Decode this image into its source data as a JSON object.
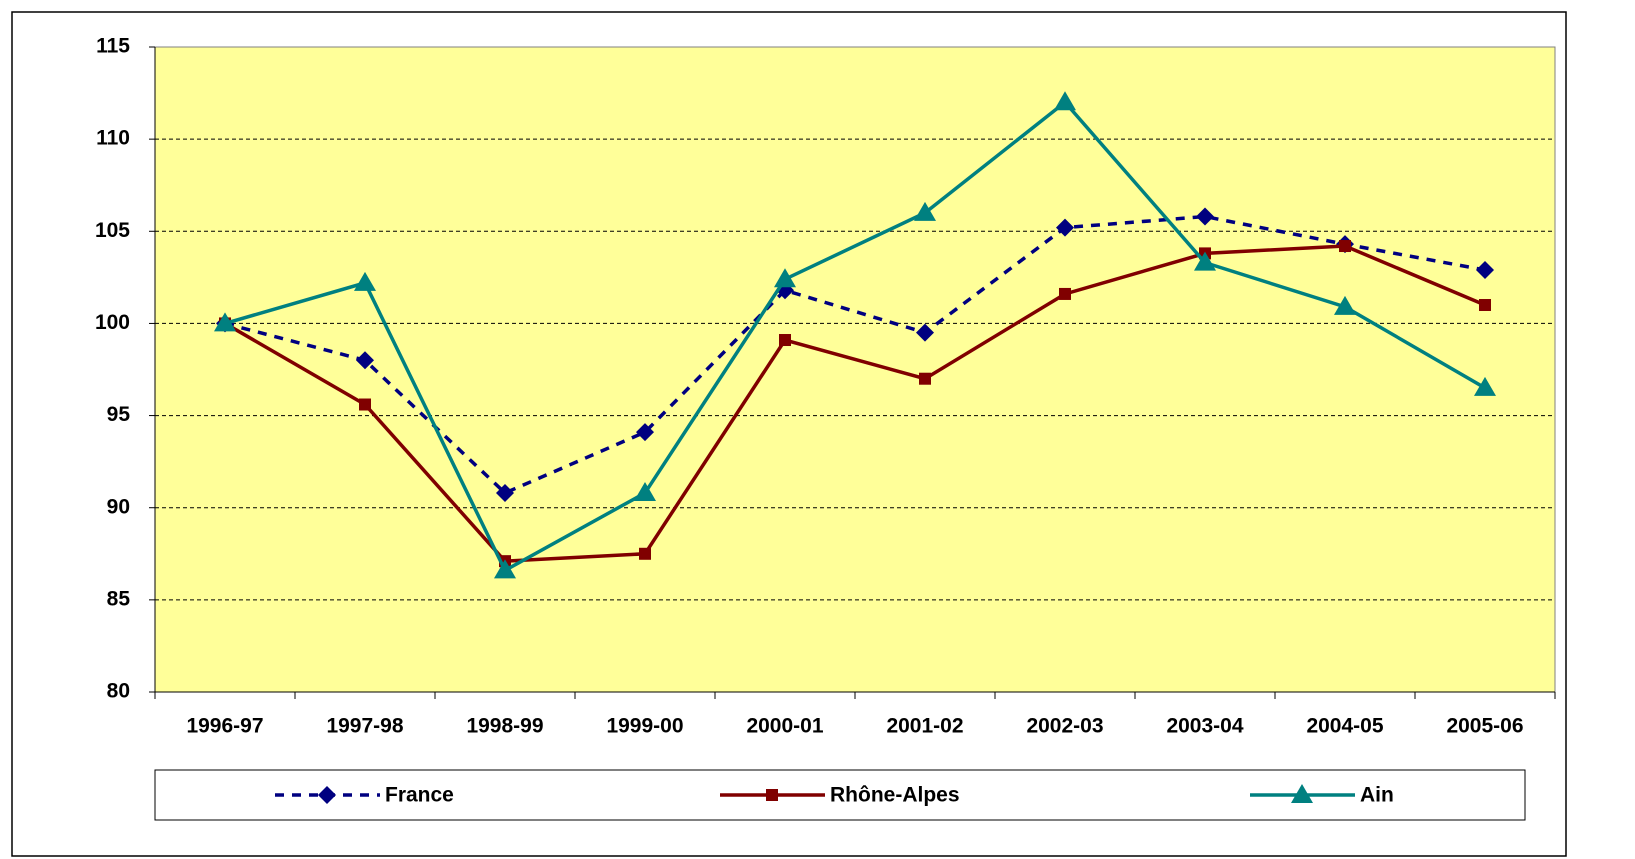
{
  "chart_data": {
    "type": "line",
    "categories": [
      "1996-97",
      "1997-98",
      "1998-99",
      "1999-00",
      "2000-01",
      "2001-02",
      "2002-03",
      "2003-04",
      "2004-05",
      "2005-06"
    ],
    "series": [
      {
        "name": "France",
        "color": "#000080",
        "dash": true,
        "marker": "diamond",
        "values": [
          100,
          98.0,
          90.8,
          94.1,
          101.8,
          99.5,
          105.2,
          105.8,
          104.3,
          102.9
        ]
      },
      {
        "name": "Rhône-Alpes",
        "color": "#800000",
        "dash": false,
        "marker": "square",
        "values": [
          100,
          95.6,
          87.1,
          87.5,
          99.1,
          97.0,
          101.6,
          103.8,
          104.2,
          101.0
        ]
      },
      {
        "name": "Ain",
        "color": "#008080",
        "dash": false,
        "marker": "triangle",
        "values": [
          100,
          102.2,
          86.6,
          90.8,
          102.4,
          106.0,
          112.0,
          103.3,
          100.9,
          96.5
        ]
      }
    ],
    "ylim": [
      80,
      115
    ],
    "yticks": [
      80,
      85,
      90,
      95,
      100,
      105,
      110,
      115
    ],
    "grid": true,
    "legend": "bottom"
  }
}
